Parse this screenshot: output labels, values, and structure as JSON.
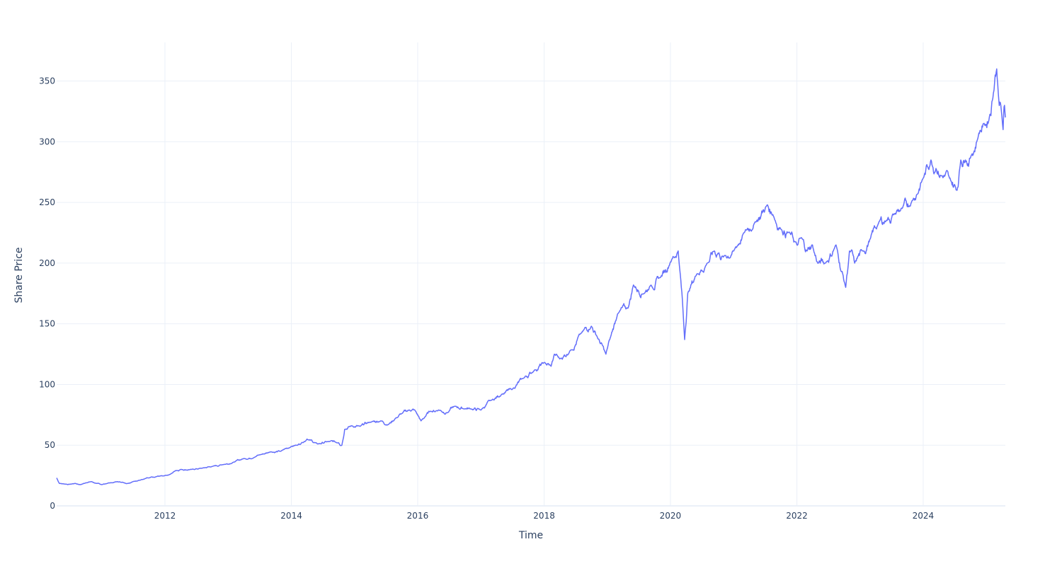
{
  "chart_data": {
    "type": "line",
    "xlabel": "Time",
    "ylabel": "Share Price",
    "x_ticks": [
      "2012",
      "2014",
      "2016",
      "2018",
      "2020",
      "2022",
      "2024"
    ],
    "y_ticks": [
      0,
      50,
      100,
      150,
      200,
      250,
      300,
      350
    ],
    "xlim": [
      "2010-04-15",
      "2025-04-20"
    ],
    "ylim": [
      0,
      381.8
    ],
    "grid": true,
    "legend": "none",
    "line_color": "#636efa",
    "series": [
      {
        "x": [
          "2010-04-15",
          "2010-05-01",
          "2010-06-01",
          "2010-07-01",
          "2010-08-01",
          "2010-09-01",
          "2010-10-01",
          "2010-11-01",
          "2010-12-01",
          "2011-01-01",
          "2011-02-01",
          "2011-03-01",
          "2011-04-01",
          "2011-05-01",
          "2011-06-01",
          "2011-07-01",
          "2011-08-01",
          "2011-09-01",
          "2011-10-01",
          "2011-11-01",
          "2011-12-01",
          "2012-01-01",
          "2012-02-01",
          "2012-03-01",
          "2012-04-01",
          "2012-06-01",
          "2012-08-01",
          "2012-10-01",
          "2012-12-01",
          "2013-02-01",
          "2013-04-01",
          "2013-06-01",
          "2013-07-01",
          "2013-09-01",
          "2013-11-01",
          "2014-01-01",
          "2014-02-01",
          "2014-03-01",
          "2014-04-01",
          "2014-06-01",
          "2014-08-01",
          "2014-10-01",
          "2014-10-20",
          "2014-11-05",
          "2014-12-15",
          "2015-02-01",
          "2015-04-01",
          "2015-06-01",
          "2015-07-15",
          "2015-08-25",
          "2015-10-01",
          "2015-11-15",
          "2015-12-15",
          "2016-01-20",
          "2016-02-10",
          "2016-03-15",
          "2016-05-01",
          "2016-06-25",
          "2016-08-01",
          "2016-10-01",
          "2016-11-01",
          "2017-01-01",
          "2017-03-01",
          "2017-05-01",
          "2017-07-01",
          "2017-09-01",
          "2017-11-01",
          "2018-01-01",
          "2018-02-10",
          "2018-03-01",
          "2018-04-01",
          "2018-06-01",
          "2018-08-01",
          "2018-10-01",
          "2018-11-01",
          "2018-12-24",
          "2019-01-15",
          "2019-03-01",
          "2019-05-01",
          "2019-06-01",
          "2019-08-01",
          "2019-09-01",
          "2019-11-01",
          "2020-01-01",
          "2020-02-15",
          "2020-03-10",
          "2020-03-23",
          "2020-04-10",
          "2020-06-01",
          "2020-08-01",
          "2020-09-10",
          "2020-10-01",
          "2020-11-01",
          "2021-01-01",
          "2021-03-01",
          "2021-05-01",
          "2021-07-15",
          "2021-08-15",
          "2021-10-01",
          "2021-11-20",
          "2022-01-01",
          "2022-02-01",
          "2022-03-01",
          "2022-04-01",
          "2022-05-01",
          "2022-06-15",
          "2022-08-15",
          "2022-10-10",
          "2022-11-01",
          "2022-12-01",
          "2023-01-15",
          "2023-03-01",
          "2023-04-15",
          "2023-06-01",
          "2023-07-15",
          "2023-09-01",
          "2023-10-25",
          "2024-01-01",
          "2024-02-15",
          "2024-03-15",
          "2024-04-15",
          "2024-06-01",
          "2024-07-15",
          "2024-08-05",
          "2024-09-01",
          "2024-10-01",
          "2024-11-15",
          "2024-12-15",
          "2025-01-15",
          "2025-02-10",
          "2025-02-20",
          "2025-03-01",
          "2025-03-10",
          "2025-03-25",
          "2025-04-07",
          "2025-04-15",
          "2025-04-20"
        ],
        "y": [
          23,
          18.5,
          18,
          17.8,
          18.5,
          17.5,
          19,
          20,
          18.5,
          17.5,
          18.5,
          19,
          20,
          19.5,
          18.5,
          20,
          21,
          22,
          23,
          23.5,
          24.5,
          25,
          26,
          29,
          30,
          30,
          31,
          32.5,
          34,
          36,
          39,
          40,
          42,
          44.5,
          45,
          49,
          50,
          52,
          55,
          51,
          53,
          52,
          50,
          63,
          66,
          65.5,
          69,
          70,
          67,
          72,
          76,
          79,
          79,
          70,
          73,
          78,
          79,
          77,
          82,
          80,
          80,
          79,
          87,
          92,
          96,
          105,
          111,
          118,
          115,
          125,
          121,
          128,
          142,
          148,
          140,
          125,
          137,
          158,
          163,
          182,
          175,
          180,
          188,
          201,
          210,
          170,
          137,
          175,
          191,
          200,
          210,
          208,
          205,
          210,
          225,
          233,
          248,
          240,
          228,
          225,
          215,
          220,
          210,
          215,
          200,
          200,
          215,
          180,
          210,
          200,
          210,
          220,
          232,
          235,
          240,
          245,
          250,
          270,
          285,
          278,
          272,
          270,
          260,
          285,
          285,
          287,
          305,
          315,
          318,
          340,
          355,
          360,
          340,
          330,
          310,
          330,
          320
        ]
      }
    ]
  }
}
